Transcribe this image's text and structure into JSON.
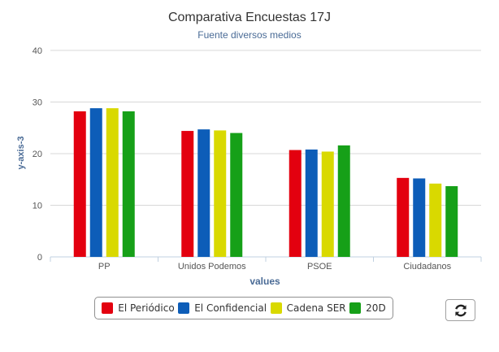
{
  "chart_data": {
    "type": "bar",
    "title": "Comparativa Encuestas 17J",
    "subtitle": "Fuente diversos medios",
    "xlabel": "values",
    "ylabel": "y-axis-3",
    "ylim": [
      0,
      40
    ],
    "yticks": [
      "0",
      "10",
      "20",
      "30",
      "40"
    ],
    "grid": true,
    "legend_position": "bottom-center",
    "categories": [
      "PP",
      "Unidos Podemos",
      "PSOE",
      "Ciudadanos"
    ],
    "series": [
      {
        "name": "El Periódico",
        "color": "#e3000f",
        "values": [
          28.2,
          24.4,
          20.7,
          15.3
        ]
      },
      {
        "name": "El Confidencial",
        "color": "#0d5db8",
        "values": [
          28.8,
          24.7,
          20.8,
          15.2
        ]
      },
      {
        "name": "Cadena SER",
        "color": "#d9d900",
        "values": [
          28.8,
          24.5,
          20.4,
          14.2
        ]
      },
      {
        "name": "20D",
        "color": "#16a018",
        "values": [
          28.2,
          24.0,
          21.6,
          13.7
        ]
      }
    ]
  },
  "toolbar": {
    "refresh_icon": "refresh-icon"
  }
}
